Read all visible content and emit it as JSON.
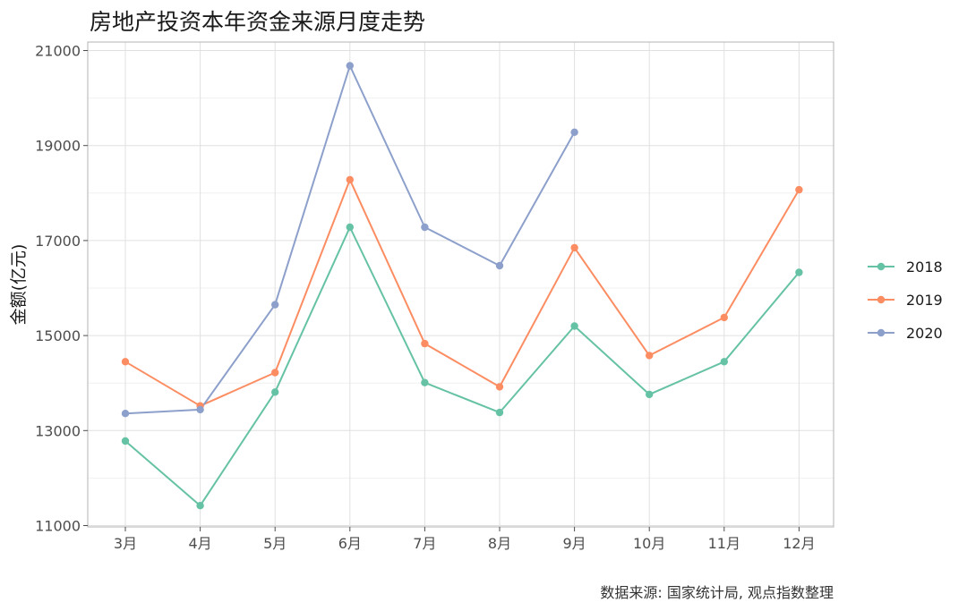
{
  "chart_data": {
    "type": "line",
    "title": "房地产投资本年资金来源月度走势",
    "xlabel": "",
    "ylabel": "金额(亿元)",
    "caption": "数据来源: 国家统计局, 观点指数整理",
    "categories": [
      "3月",
      "4月",
      "5月",
      "6月",
      "7月",
      "8月",
      "9月",
      "10月",
      "11月",
      "12月"
    ],
    "yticks": [
      11000,
      13000,
      15000,
      17000,
      19000,
      21000
    ],
    "ylim": [
      10950,
      21200
    ],
    "grid": true,
    "legend_position": "right",
    "series": [
      {
        "name": "2018",
        "color": "#66c2a5",
        "values": [
          12780,
          11420,
          13810,
          17280,
          14010,
          13380,
          15200,
          13760,
          14450,
          16330
        ]
      },
      {
        "name": "2019",
        "color": "#fc8d62",
        "values": [
          14450,
          13520,
          14220,
          18280,
          14830,
          13920,
          16850,
          14580,
          15380,
          18070
        ]
      },
      {
        "name": "2020",
        "color": "#8da0cb",
        "values": [
          13360,
          13440,
          15650,
          20680,
          17280,
          16470,
          19280,
          null,
          null,
          null
        ]
      }
    ]
  }
}
